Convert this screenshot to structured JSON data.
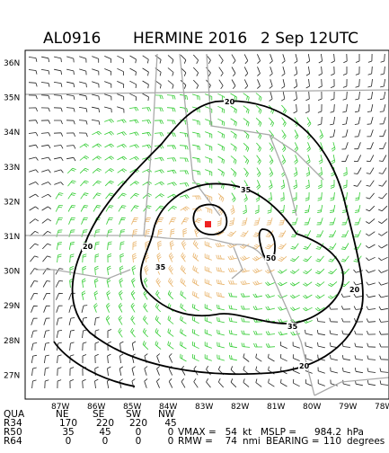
{
  "header": {
    "storm_id": "AL0916",
    "storm_name": "HERMINE 2016",
    "time": "2 Sep 12UTC"
  },
  "map": {
    "lat_labels": [
      "36N",
      "35N",
      "34N",
      "33N",
      "32N",
      "31N",
      "30N",
      "29N",
      "28N",
      "27N"
    ],
    "lon_labels": [
      "87W",
      "86W",
      "85W",
      "84W",
      "83W",
      "82W",
      "81W",
      "80W",
      "79W",
      "78W"
    ],
    "contour_labels": [
      "20",
      "35",
      "20",
      "35",
      "50",
      "20",
      "35",
      "20"
    ]
  },
  "table": {
    "header": [
      "QUA",
      "NE",
      "SE",
      "SW",
      "NW"
    ],
    "rows": [
      [
        "R34",
        170,
        220,
        220,
        45
      ],
      [
        "R50",
        35,
        45,
        0,
        0
      ],
      [
        "R64",
        0,
        0,
        0,
        0
      ]
    ]
  },
  "summary": {
    "vmax_label": "VMAX =",
    "vmax": 54,
    "vmax_unit": "kt",
    "mslp_label": "MSLP =",
    "mslp": 984.2,
    "mslp_unit": "hPa",
    "rmw_label": "RMW =",
    "rmw": 74,
    "rmw_unit": "nmi",
    "bearing_label": "BEARING =",
    "bearing": 110,
    "bearing_unit": "degrees"
  }
}
